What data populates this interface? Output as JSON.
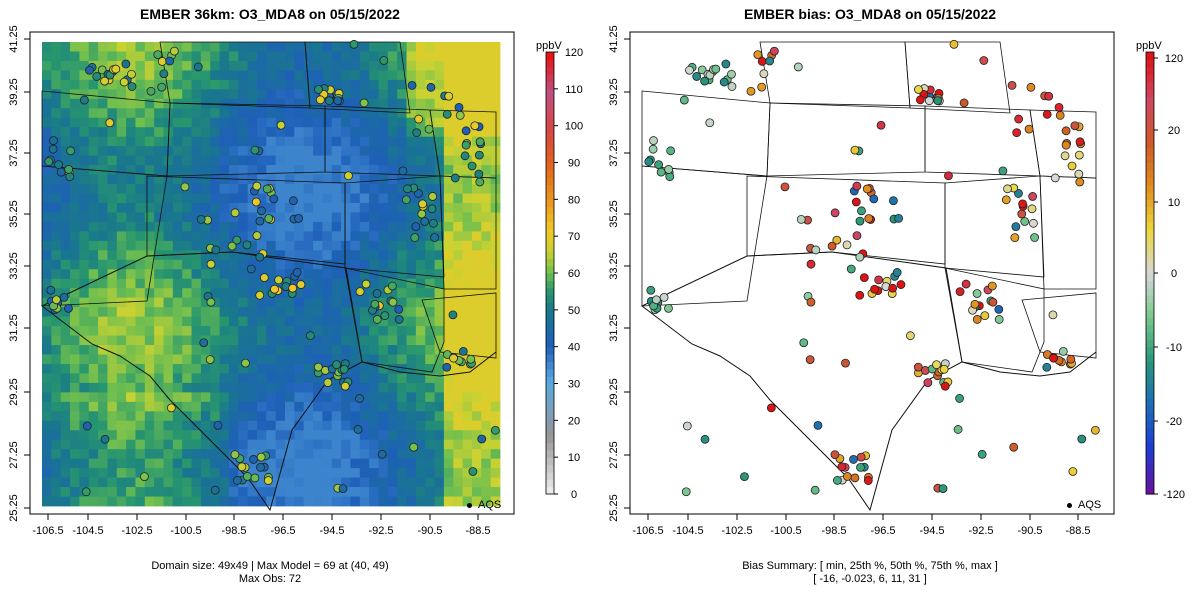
{
  "colors": {
    "background": "#ffffff",
    "text": "#000000",
    "border": "#000000"
  },
  "grid": "off",
  "x_ticks": [
    "-106.5",
    "-104.5",
    "-102.5",
    "-100.5",
    "-98.5",
    "-96.5",
    "-94.5",
    "-92.5",
    "-90.5",
    "-88.5"
  ],
  "y_ticks": [
    "25.25",
    "27.25",
    "29.25",
    "31.25",
    "33.25",
    "35.25",
    "37.25",
    "39.25",
    "41.25"
  ],
  "obs_legend": "AQS",
  "left": {
    "title": "EMBER 36km: O3_MDA8 on 05/15/2022",
    "units": "ppbV",
    "colorbar_ticks": [
      "0",
      "10",
      "20",
      "30",
      "40",
      "50",
      "60",
      "70",
      "80",
      "90",
      "100",
      "110",
      "120"
    ],
    "footer1": "Domain size: 49x49 | Max Model = 69 at (40, 49)",
    "footer2": "Max Obs: 72"
  },
  "right": {
    "title": "EMBER bias: O3_MDA8 on 05/15/2022",
    "units": "ppbV",
    "colorbar_ticks": [
      "-120",
      "-20",
      "-10",
      "0",
      "10",
      "20",
      "120"
    ],
    "footer1": "Bias Summary: [ min, 25th %, 50th %, 75th %, max ]",
    "footer2": "[ -16,   -0.023,   6,   11,   31 ]"
  },
  "chart_data": [
    {
      "type": "heatmap",
      "title": "EMBER 36km: O3_MDA8 on 05/15/2022",
      "xlim": [
        -107.5,
        -87.5
      ],
      "ylim": [
        25.25,
        41.25
      ],
      "units": "ppbV",
      "color_range": [
        0,
        120
      ],
      "model_max": 69,
      "obs_max": 72,
      "domain_size": "49x49"
    },
    {
      "type": "scatter",
      "title": "EMBER bias: O3_MDA8 on 05/15/2022",
      "xlim": [
        -107.5,
        -87.5
      ],
      "ylim": [
        25.25,
        41.25
      ],
      "units": "ppbV",
      "bias_summary": {
        "min": -16,
        "p25": -0.023,
        "p50": 6,
        "p75": 11,
        "max": 31
      }
    }
  ]
}
